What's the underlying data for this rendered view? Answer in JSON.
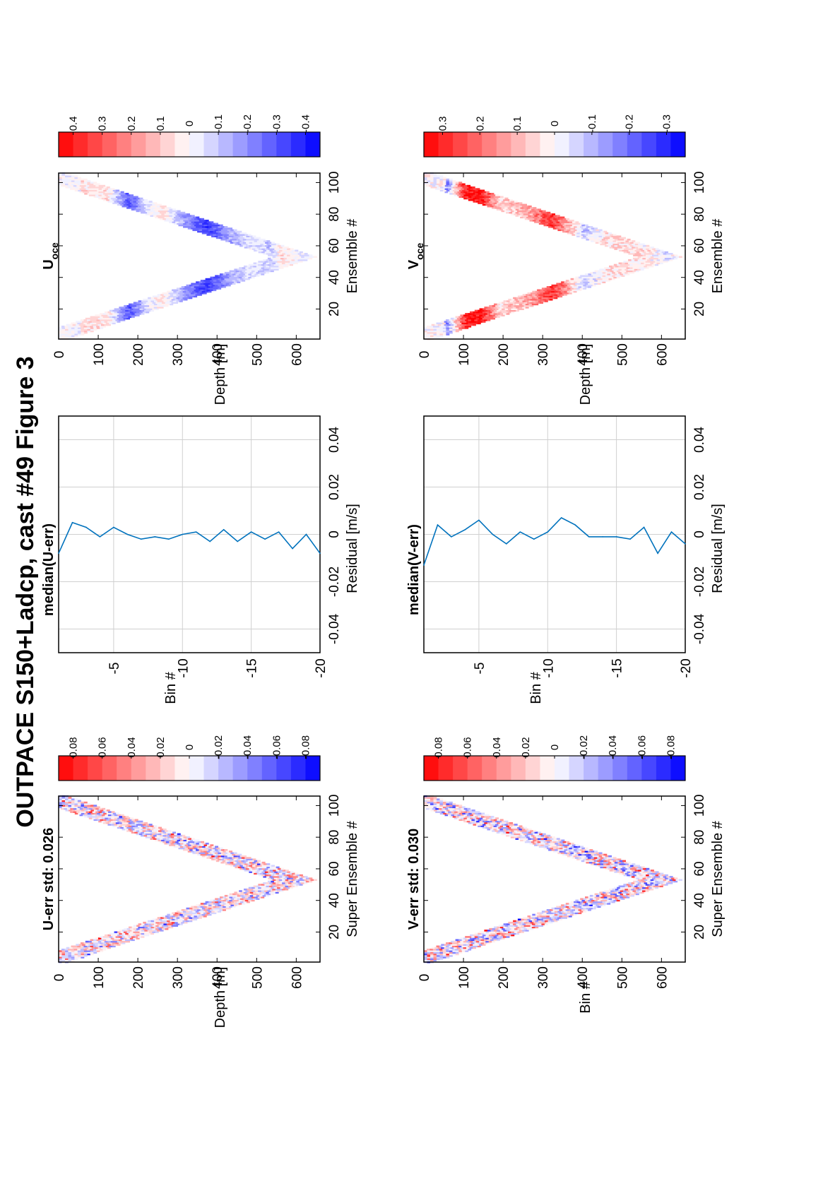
{
  "figure": {
    "title": "OUTPACE S150+Ladcp, cast #49  Figure 3"
  },
  "colors": {
    "red": "#ff0000",
    "blue": "#0000ff",
    "line": "#0072bd",
    "grid": "#d0d0d0"
  },
  "chart_data": [
    {
      "id": "u_err",
      "type": "heatmap",
      "title": "U-err std: 0.026",
      "xlabel": "Super Ensemble #",
      "ylabel": "Depth [m]",
      "xlim": [
        1,
        106
      ],
      "ylim": [
        0,
        660
      ],
      "xticks": [
        20,
        40,
        60,
        80,
        100
      ],
      "yticks": [
        0,
        100,
        200,
        300,
        400,
        500,
        600
      ],
      "colorbar": {
        "ticks": [
          "0.08",
          "0.06",
          "0.04",
          "0.02",
          "0",
          "-0.02",
          "-0.04",
          "-0.06",
          "-0.08"
        ],
        "range": [
          -0.09,
          0.09
        ]
      },
      "profile": {
        "bottom_ensemble": 53,
        "max_depth": 650,
        "band_width": 110
      },
      "seed": 11,
      "scale": 0.035
    },
    {
      "id": "u_median",
      "type": "line",
      "title": "median(U-err)",
      "xlabel": "Residual [m/s]",
      "ylabel": "Bin #",
      "xlim": [
        -0.05,
        0.05
      ],
      "ylim": [
        -1,
        -20
      ],
      "xticks": [
        "-0.04",
        "-0.02",
        "0",
        "0.02",
        "0.04"
      ],
      "yticks": [
        "-5",
        "-10",
        "-15",
        "-20"
      ],
      "grid": true,
      "series": [
        {
          "bins": [
            -1,
            -2,
            -3,
            -4,
            -5,
            -6,
            -7,
            -8,
            -9,
            -10,
            -11,
            -12,
            -13,
            -14,
            -15,
            -16,
            -17,
            -18,
            -19,
            -20
          ],
          "values": [
            -0.008,
            0.005,
            0.003,
            -0.001,
            0.003,
            0.0,
            -0.002,
            -0.001,
            -0.002,
            0.0,
            0.001,
            -0.003,
            0.002,
            -0.003,
            0.001,
            -0.002,
            0.001,
            -0.006,
            0.0,
            -0.008
          ]
        }
      ]
    },
    {
      "id": "u_oce",
      "type": "heatmap",
      "title": "U",
      "title_sub": "oce",
      "xlabel": "Ensemble #",
      "ylabel": "Depth [m]",
      "xlim": [
        1,
        106
      ],
      "ylim": [
        0,
        660
      ],
      "xticks": [
        20,
        40,
        60,
        80,
        100
      ],
      "yticks": [
        0,
        100,
        200,
        300,
        400,
        500,
        600
      ],
      "colorbar": {
        "ticks": [
          "0.4",
          "0.3",
          "0.2",
          "0.1",
          "0",
          "-0.1",
          "-0.2",
          "-0.3",
          "-0.4"
        ],
        "range": [
          -0.45,
          0.45
        ]
      },
      "profile": {
        "bottom_ensemble": 53,
        "max_depth": 650,
        "band_width": 110
      },
      "layers": [
        [
          50,
          0.05
        ],
        [
          120,
          0.05
        ],
        [
          175,
          -0.3
        ],
        [
          220,
          -0.05
        ],
        [
          260,
          0.05
        ],
        [
          300,
          -0.12
        ],
        [
          370,
          -0.35
        ],
        [
          430,
          -0.15
        ],
        [
          480,
          -0.05
        ],
        [
          530,
          -0.1
        ],
        [
          560,
          0.05
        ],
        [
          620,
          -0.05
        ]
      ],
      "seed": 23,
      "scale": 0.06
    },
    {
      "id": "v_err",
      "type": "heatmap",
      "title": "V-err std: 0.030",
      "xlabel": "Super Ensemble #",
      "ylabel": "Bin #",
      "xlim": [
        1,
        106
      ],
      "ylim": [
        0,
        660
      ],
      "xticks": [
        20,
        40,
        60,
        80,
        100
      ],
      "yticks": [
        0,
        100,
        200,
        300,
        400,
        500,
        600
      ],
      "colorbar": {
        "ticks": [
          "0.08",
          "0.06",
          "0.04",
          "0.02",
          "0",
          "-0.02",
          "-0.04",
          "-0.06",
          "-0.08"
        ],
        "range": [
          -0.09,
          0.09
        ]
      },
      "profile": {
        "bottom_ensemble": 53,
        "max_depth": 650,
        "band_width": 110
      },
      "seed": 37,
      "scale": 0.04
    },
    {
      "id": "v_median",
      "type": "line",
      "title": "median(V-err)",
      "xlabel": "Residual [m/s]",
      "ylabel": "Bin #",
      "xlim": [
        -0.05,
        0.05
      ],
      "ylim": [
        -1,
        -20
      ],
      "xticks": [
        "-0.04",
        "-0.02",
        "0",
        "0.02",
        "0.04"
      ],
      "yticks": [
        "-5",
        "-10",
        "-15",
        "-20"
      ],
      "grid": true,
      "series": [
        {
          "bins": [
            -1,
            -2,
            -3,
            -4,
            -5,
            -6,
            -7,
            -8,
            -9,
            -10,
            -11,
            -12,
            -13,
            -14,
            -15,
            -16,
            -17,
            -18,
            -19,
            -20
          ],
          "values": [
            -0.013,
            0.004,
            -0.001,
            0.002,
            0.006,
            0.0,
            -0.004,
            0.001,
            -0.002,
            0.001,
            0.007,
            0.004,
            -0.001,
            -0.001,
            -0.001,
            -0.002,
            0.003,
            -0.008,
            0.001,
            -0.004
          ]
        }
      ]
    },
    {
      "id": "v_oce",
      "type": "heatmap",
      "title": "V",
      "title_sub": "oce",
      "xlabel": "Ensemble #",
      "ylabel": "Depth [m]",
      "xlim": [
        1,
        106
      ],
      "ylim": [
        0,
        660
      ],
      "xticks": [
        20,
        40,
        60,
        80,
        100
      ],
      "yticks": [
        0,
        100,
        200,
        300,
        400,
        500,
        600
      ],
      "colorbar": {
        "ticks": [
          "0.3",
          "0.2",
          "0.1",
          "0",
          "-0.1",
          "-0.2",
          "-0.3"
        ],
        "range": [
          -0.35,
          0.35
        ]
      },
      "profile": {
        "bottom_ensemble": 53,
        "max_depth": 650,
        "band_width": 110
      },
      "layers": [
        [
          50,
          -0.2
        ],
        [
          100,
          0.3
        ],
        [
          140,
          0.33
        ],
        [
          190,
          0.05
        ],
        [
          250,
          0.1
        ],
        [
          320,
          0.28
        ],
        [
          360,
          0.12
        ],
        [
          400,
          -0.08
        ],
        [
          450,
          0.03
        ],
        [
          500,
          0.05
        ],
        [
          560,
          0.02
        ],
        [
          620,
          -0.05
        ]
      ],
      "seed": 51,
      "scale": 0.07
    }
  ]
}
